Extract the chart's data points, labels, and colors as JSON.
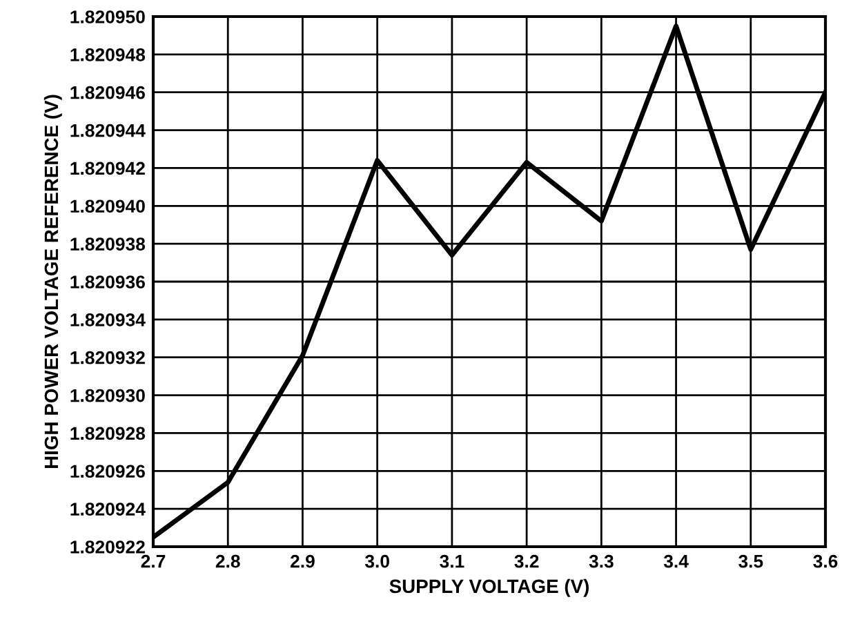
{
  "chart_data": {
    "type": "line",
    "xlabel": "SUPPLY VOLTAGE (V)",
    "ylabel": "HIGH POWER VOLTAGE REFERENCE (V)",
    "x": [
      2.7,
      2.8,
      2.9,
      3.0,
      3.1,
      3.2,
      3.3,
      3.4,
      3.5,
      3.6
    ],
    "series": [
      {
        "color": "#000000",
        "values": [
          1.8209225,
          1.8209254,
          1.8209321,
          1.8209424,
          1.8209374,
          1.8209423,
          1.8209392,
          1.8209495,
          1.8209377,
          1.820946
        ]
      }
    ],
    "xlim": [
      2.7,
      3.6
    ],
    "ylim": [
      1.820922,
      1.82095
    ],
    "xticks": [
      2.7,
      2.8,
      2.9,
      {
        "value": 3.0,
        "label": "3.0"
      },
      3.1,
      3.2,
      3.3,
      3.4,
      3.5,
      3.6
    ],
    "yticks": [
      {
        "value": 1.820922,
        "label": "1.820922"
      },
      {
        "value": 1.820924,
        "label": "1.820924"
      },
      {
        "value": 1.820926,
        "label": "1.820926"
      },
      {
        "value": 1.820928,
        "label": "1.820928"
      },
      {
        "value": 1.82093,
        "label": "1.820930"
      },
      {
        "value": 1.820932,
        "label": "1.820932"
      },
      {
        "value": 1.820934,
        "label": "1.820934"
      },
      {
        "value": 1.820936,
        "label": "1.820936"
      },
      {
        "value": 1.820938,
        "label": "1.820938"
      },
      {
        "value": 1.82094,
        "label": "1.820940"
      },
      {
        "value": 1.820942,
        "label": "1.820942"
      },
      {
        "value": 1.820944,
        "label": "1.820944"
      },
      {
        "value": 1.820946,
        "label": "1.820946"
      },
      {
        "value": 1.820948,
        "label": "1.820948"
      },
      {
        "value": 1.82095,
        "label": "1.820950"
      }
    ],
    "grid": true,
    "marker": "none",
    "line_style": "solid"
  }
}
